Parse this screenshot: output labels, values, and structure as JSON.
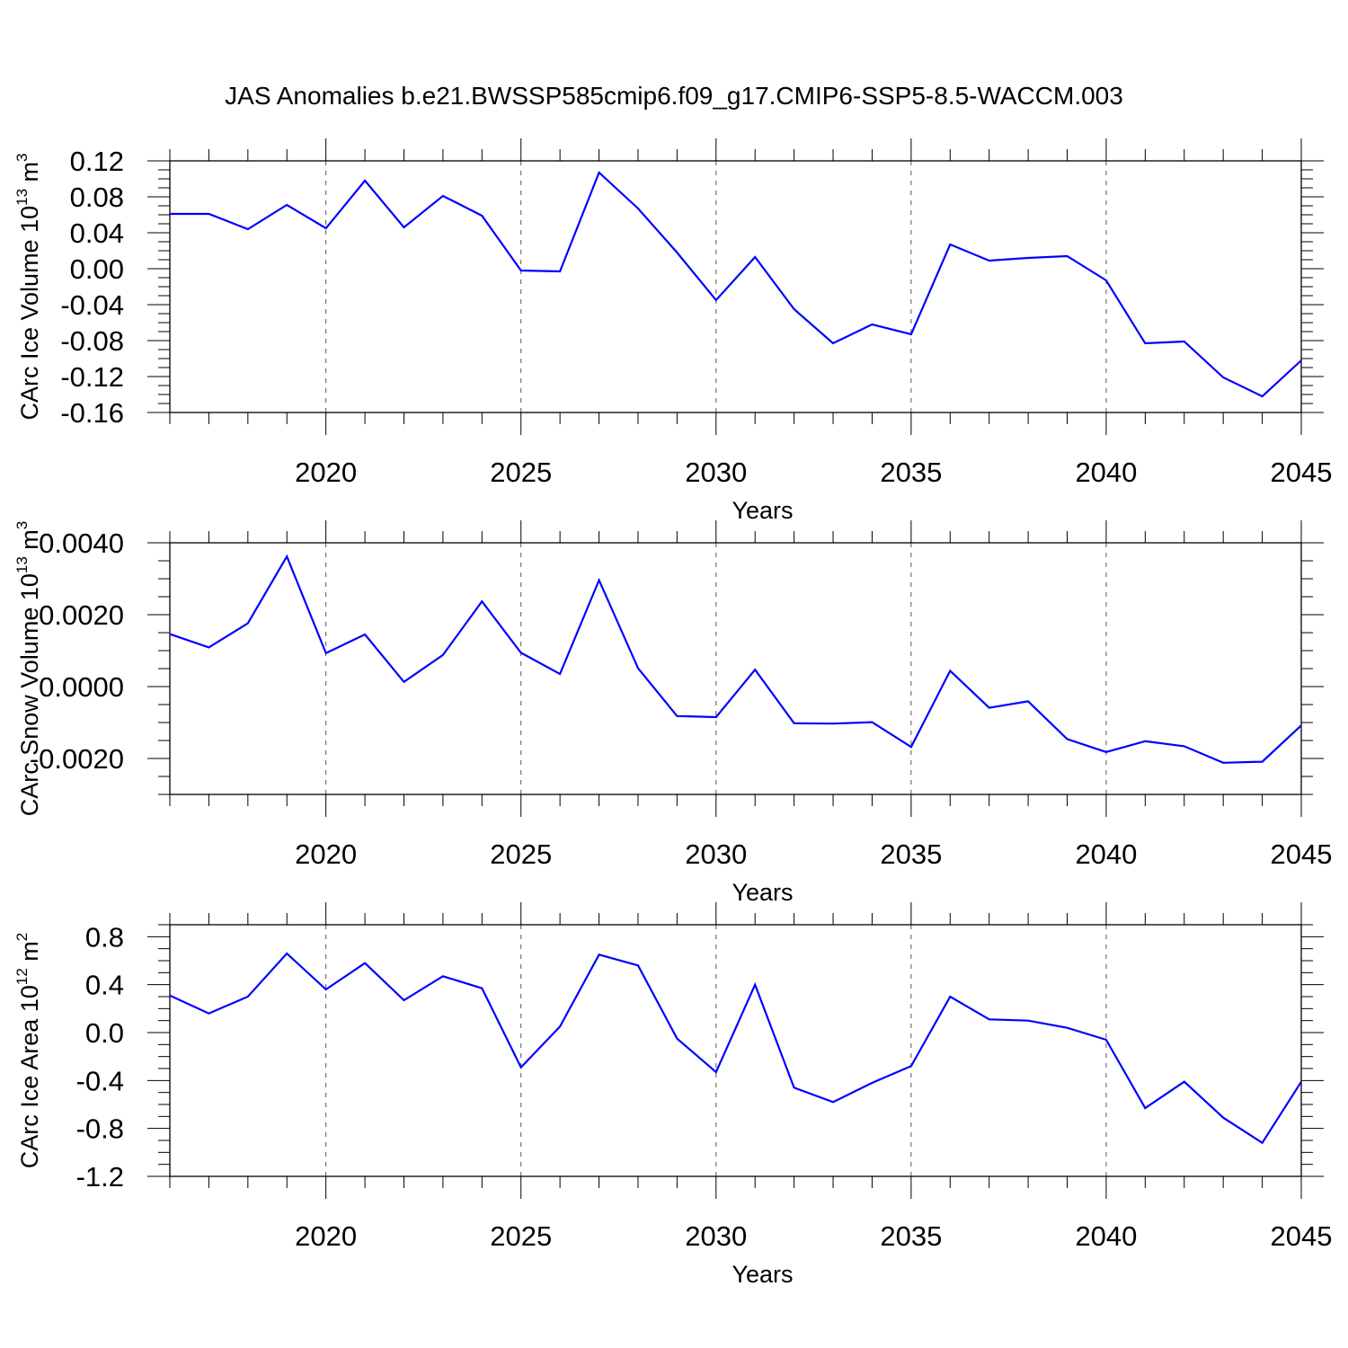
{
  "title": "JAS Anomalies b.e21.BWSSP585cmip6.f09_g17.CMIP6-SSP5-8.5-WACCM.003",
  "chart_data": [
    {
      "type": "line",
      "title": "",
      "xlabel": "Years",
      "ylabel": "CArc Ice Volume 10",
      "ylabel_exp": "13",
      "ylabel_unit": " m",
      "ylabel_unit_exp": "3",
      "xlim": [
        2016,
        2045
      ],
      "ylim": [
        -0.16,
        0.12
      ],
      "x_ticks": [
        2020,
        2025,
        2030,
        2035,
        2040,
        2045
      ],
      "x_tick_labels": [
        "2020",
        "2025",
        "2030",
        "2035",
        "2040",
        "2045"
      ],
      "y_ticks": [
        -0.16,
        -0.12,
        -0.08,
        -0.04,
        0.0,
        0.04,
        0.08,
        0.12
      ],
      "y_tick_labels": [
        "-0.16",
        "-0.12",
        "-0.08",
        "-0.04",
        "0.00",
        "0.04",
        "0.08",
        "0.12"
      ],
      "grid": "vertical dashed at major x ticks",
      "x": [
        2016,
        2017,
        2018,
        2019,
        2020,
        2021,
        2022,
        2023,
        2024,
        2025,
        2026,
        2027,
        2028,
        2029,
        2030,
        2031,
        2032,
        2033,
        2034,
        2035,
        2036,
        2037,
        2038,
        2039,
        2040,
        2041,
        2042,
        2043,
        2044,
        2045
      ],
      "series": [
        {
          "color": "#0000ff",
          "values": [
            0.061,
            0.061,
            0.044,
            0.071,
            0.045,
            0.098,
            0.046,
            0.081,
            0.059,
            -0.002,
            -0.003,
            0.107,
            0.067,
            0.018,
            -0.035,
            0.013,
            -0.045,
            -0.083,
            -0.062,
            -0.073,
            0.027,
            0.009,
            0.012,
            0.014,
            -0.013,
            -0.083,
            -0.081,
            -0.121,
            -0.142,
            -0.102
          ]
        }
      ]
    },
    {
      "type": "line",
      "title": "",
      "xlabel": "Years",
      "ylabel": "CArc Snow Volume 10",
      "ylabel_exp": "13",
      "ylabel_unit": " m",
      "ylabel_unit_exp": "3",
      "xlim": [
        2016,
        2045
      ],
      "ylim": [
        -0.003,
        0.004
      ],
      "x_ticks": [
        2020,
        2025,
        2030,
        2035,
        2040,
        2045
      ],
      "x_tick_labels": [
        "2020",
        "2025",
        "2030",
        "2035",
        "2040",
        "2045"
      ],
      "y_ticks": [
        -0.002,
        0.0,
        0.002,
        0.004
      ],
      "y_tick_labels": [
        "-0.0020",
        "0.0000",
        "0.0020",
        "0.0040"
      ],
      "grid": "vertical dashed at major x ticks",
      "x": [
        2016,
        2017,
        2018,
        2019,
        2020,
        2021,
        2022,
        2023,
        2024,
        2025,
        2026,
        2027,
        2028,
        2029,
        2030,
        2031,
        2032,
        2033,
        2034,
        2035,
        2036,
        2037,
        2038,
        2039,
        2040,
        2041,
        2042,
        2043,
        2044,
        2045
      ],
      "series": [
        {
          "color": "#0000ff",
          "values": [
            0.00146,
            0.00109,
            0.00176,
            0.00362,
            0.00093,
            0.00145,
            0.00013,
            0.00088,
            0.00237,
            0.00094,
            0.00035,
            0.00296,
            0.00051,
            -0.00082,
            -0.00085,
            0.00047,
            -0.00102,
            -0.00103,
            -0.00099,
            -0.00168,
            0.00044,
            -0.00059,
            -0.00041,
            -0.00146,
            -0.00182,
            -0.00152,
            -0.00166,
            -0.00212,
            -0.00209,
            -0.00108
          ]
        }
      ]
    },
    {
      "type": "line",
      "title": "",
      "xlabel": "Years",
      "ylabel": "CArc Ice Area 10",
      "ylabel_exp": "12",
      "ylabel_unit": " m",
      "ylabel_unit_exp": "2",
      "xlim": [
        2016,
        2045
      ],
      "ylim": [
        -1.2,
        0.9
      ],
      "x_ticks": [
        2020,
        2025,
        2030,
        2035,
        2040,
        2045
      ],
      "x_tick_labels": [
        "2020",
        "2025",
        "2030",
        "2035",
        "2040",
        "2045"
      ],
      "y_ticks": [
        -1.2,
        -0.8,
        -0.4,
        0.0,
        0.4,
        0.8
      ],
      "y_tick_labels": [
        "-1.2",
        "-0.8",
        "-0.4",
        "0.0",
        "0.4",
        "0.8"
      ],
      "grid": "vertical dashed at major x ticks",
      "x": [
        2016,
        2017,
        2018,
        2019,
        2020,
        2021,
        2022,
        2023,
        2024,
        2025,
        2026,
        2027,
        2028,
        2029,
        2030,
        2031,
        2032,
        2033,
        2034,
        2035,
        2036,
        2037,
        2038,
        2039,
        2040,
        2041,
        2042,
        2043,
        2044,
        2045
      ],
      "series": [
        {
          "color": "#0000ff",
          "values": [
            0.31,
            0.16,
            0.3,
            0.66,
            0.36,
            0.58,
            0.27,
            0.47,
            0.37,
            -0.29,
            0.05,
            0.65,
            0.56,
            -0.05,
            -0.33,
            0.4,
            -0.46,
            -0.58,
            -0.42,
            -0.28,
            0.3,
            0.11,
            0.1,
            0.04,
            -0.06,
            -0.63,
            -0.41,
            -0.71,
            -0.92,
            -0.41
          ]
        }
      ]
    }
  ]
}
